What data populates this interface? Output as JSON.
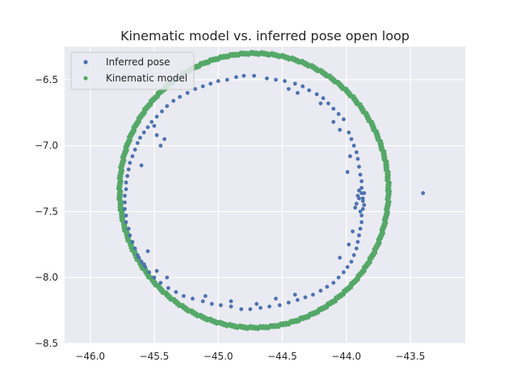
{
  "chart_data": {
    "type": "scatter",
    "title": "Kinematic model vs. inferred pose open loop",
    "xlabel": "",
    "ylabel": "",
    "xlim": [
      -46.2,
      -43.07
    ],
    "ylim": [
      -8.5,
      -6.25
    ],
    "xticks": [
      -46.0,
      -45.5,
      -45.0,
      -44.5,
      -44.0,
      -43.5
    ],
    "yticks": [
      -6.5,
      -7.0,
      -7.5,
      -8.0,
      -8.5
    ],
    "xtick_labels": [
      "−46.0",
      "−45.5",
      "−45.0",
      "−44.5",
      "−44.0",
      "−43.5"
    ],
    "ytick_labels": [
      "−6.5",
      "−7.0",
      "−7.5",
      "−8.0",
      "−8.5"
    ],
    "grid": true,
    "legend_position": "top-left",
    "series": [
      {
        "name": "Inferred pose",
        "color": "#4c72b0",
        "points": [
          [
            -44.72,
            -6.47
          ],
          [
            -44.55,
            -6.5
          ],
          [
            -44.4,
            -6.53
          ],
          [
            -44.29,
            -6.58
          ],
          [
            -44.18,
            -6.64
          ],
          [
            -44.1,
            -6.72
          ],
          [
            -44.02,
            -6.8
          ],
          [
            -43.98,
            -6.9
          ],
          [
            -43.94,
            -7.0
          ],
          [
            -43.91,
            -7.1
          ],
          [
            -43.89,
            -7.22
          ],
          [
            -43.88,
            -7.32
          ],
          [
            -43.87,
            -7.4
          ],
          [
            -43.87,
            -7.48
          ],
          [
            -43.88,
            -7.58
          ],
          [
            -43.9,
            -7.68
          ],
          [
            -43.92,
            -7.78
          ],
          [
            -43.96,
            -7.88
          ],
          [
            -44.02,
            -7.96
          ],
          [
            -44.1,
            -8.04
          ],
          [
            -44.2,
            -8.1
          ],
          [
            -44.32,
            -8.15
          ],
          [
            -44.45,
            -8.19
          ],
          [
            -44.6,
            -8.22
          ],
          [
            -44.75,
            -8.24
          ],
          [
            -44.9,
            -8.22
          ],
          [
            -45.05,
            -8.2
          ],
          [
            -45.2,
            -8.16
          ],
          [
            -45.33,
            -8.11
          ],
          [
            -45.45,
            -8.04
          ],
          [
            -45.54,
            -7.96
          ],
          [
            -45.6,
            -7.88
          ],
          [
            -45.65,
            -7.78
          ],
          [
            -45.69,
            -7.68
          ],
          [
            -45.72,
            -7.58
          ],
          [
            -45.73,
            -7.48
          ],
          [
            -45.73,
            -7.38
          ],
          [
            -45.72,
            -7.28
          ],
          [
            -45.7,
            -7.18
          ],
          [
            -45.67,
            -7.08
          ],
          [
            -45.63,
            -6.98
          ],
          [
            -45.58,
            -6.9
          ],
          [
            -45.52,
            -6.82
          ],
          [
            -45.44,
            -6.74
          ],
          [
            -45.35,
            -6.66
          ],
          [
            -45.24,
            -6.6
          ],
          [
            -45.12,
            -6.55
          ],
          [
            -45.0,
            -6.51
          ],
          [
            -44.86,
            -6.48
          ],
          [
            -44.62,
            -6.49
          ],
          [
            -44.48,
            -6.51
          ],
          [
            -44.34,
            -6.55
          ],
          [
            -44.23,
            -6.61
          ],
          [
            -44.14,
            -6.68
          ],
          [
            -44.06,
            -6.76
          ],
          [
            -43.96,
            -6.95
          ],
          [
            -43.92,
            -7.05
          ],
          [
            -43.9,
            -7.16
          ],
          [
            -43.88,
            -7.27
          ],
          [
            -43.86,
            -7.36
          ],
          [
            -43.89,
            -7.63
          ],
          [
            -43.91,
            -7.73
          ],
          [
            -43.94,
            -7.83
          ],
          [
            -43.99,
            -7.92
          ],
          [
            -44.06,
            -8.0
          ],
          [
            -44.15,
            -8.07
          ],
          [
            -44.26,
            -8.13
          ],
          [
            -44.38,
            -8.17
          ],
          [
            -44.52,
            -8.21
          ],
          [
            -44.67,
            -8.23
          ],
          [
            -44.82,
            -8.24
          ],
          [
            -44.98,
            -8.21
          ],
          [
            -45.12,
            -8.18
          ],
          [
            -45.27,
            -8.14
          ],
          [
            -45.39,
            -8.08
          ],
          [
            -45.5,
            -8.0
          ],
          [
            -45.57,
            -7.92
          ],
          [
            -45.63,
            -7.83
          ],
          [
            -45.67,
            -7.73
          ],
          [
            -45.7,
            -7.63
          ],
          [
            -45.72,
            -7.53
          ],
          [
            -45.73,
            -7.43
          ],
          [
            -45.72,
            -7.33
          ],
          [
            -45.71,
            -7.23
          ],
          [
            -45.69,
            -7.13
          ],
          [
            -45.65,
            -7.03
          ],
          [
            -45.61,
            -6.94
          ],
          [
            -45.55,
            -6.86
          ],
          [
            -45.48,
            -6.78
          ],
          [
            -45.4,
            -6.7
          ],
          [
            -45.3,
            -6.63
          ],
          [
            -45.18,
            -6.57
          ],
          [
            -45.06,
            -6.53
          ],
          [
            -44.93,
            -6.5
          ],
          [
            -44.8,
            -6.47
          ],
          [
            -43.88,
            -7.36
          ],
          [
            -43.9,
            -7.4
          ],
          [
            -43.92,
            -7.44
          ],
          [
            -43.86,
            -7.45
          ],
          [
            -43.89,
            -7.5
          ],
          [
            -43.91,
            -7.38
          ],
          [
            -43.87,
            -7.42
          ],
          [
            -43.93,
            -7.47
          ],
          [
            -43.88,
            -7.53
          ],
          [
            -43.9,
            -7.34
          ],
          [
            -45.45,
            -7.0
          ],
          [
            -45.5,
            -6.85
          ],
          [
            -45.42,
            -6.95
          ],
          [
            -45.6,
            -7.15
          ],
          [
            -45.48,
            -6.92
          ],
          [
            -44.38,
            -6.6
          ],
          [
            -44.2,
            -6.68
          ],
          [
            -44.45,
            -6.57
          ],
          [
            -44.05,
            -6.88
          ],
          [
            -44.1,
            -6.82
          ],
          [
            -45.62,
            -7.85
          ],
          [
            -45.55,
            -7.8
          ],
          [
            -45.4,
            -8.0
          ],
          [
            -45.48,
            -7.95
          ],
          [
            -45.58,
            -7.9
          ],
          [
            -44.9,
            -8.18
          ],
          [
            -44.7,
            -8.2
          ],
          [
            -44.55,
            -8.16
          ],
          [
            -45.1,
            -8.14
          ],
          [
            -44.4,
            -8.13
          ],
          [
            -43.95,
            -7.65
          ],
          [
            -43.98,
            -7.75
          ],
          [
            -44.05,
            -7.85
          ],
          [
            -43.97,
            -7.08
          ],
          [
            -43.99,
            -7.2
          ],
          [
            -43.4,
            -7.36
          ]
        ]
      },
      {
        "name": "Kinematic model",
        "color": "#55a868",
        "center": [
          -44.72,
          -7.34
        ],
        "radius_x": 1.05,
        "radius_y": 1.04
      }
    ]
  }
}
